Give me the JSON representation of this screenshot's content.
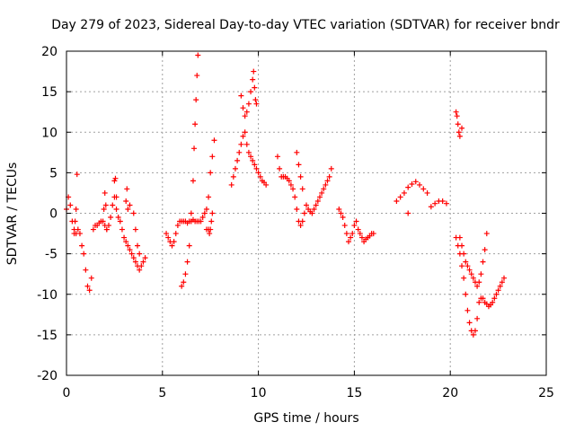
{
  "colors": {
    "series": "#ff0000",
    "grid": "#a0a0a0",
    "axis": "#000000"
  },
  "chart_data": {
    "type": "scatter",
    "title": "Day 279 of 2023, Sidereal Day-to-day VTEC variation (SDTVAR) for receiver bndr",
    "xlabel": "GPS time / hours",
    "ylabel": "SDTVAR / TECUs",
    "xlim": [
      0,
      25
    ],
    "ylim": [
      -20,
      20
    ],
    "grid": true,
    "marker": "+",
    "xticks": [
      0,
      5,
      10,
      15,
      20,
      25
    ],
    "yticks": [
      -20,
      -15,
      -10,
      -5,
      0,
      5,
      10,
      15,
      20
    ],
    "series": [
      {
        "name": "SDTVAR",
        "x": [
          0.0,
          0.1,
          0.2,
          0.3,
          0.4,
          0.5,
          0.6,
          0.7,
          0.8,
          0.9,
          1.0,
          1.1,
          1.2,
          1.3,
          1.4,
          1.5,
          1.6,
          1.7,
          1.8,
          1.9,
          2.0,
          2.1,
          2.2,
          2.3,
          2.4,
          2.5,
          2.6,
          2.7,
          2.8,
          2.9,
          3.0,
          3.1,
          3.2,
          3.3,
          3.4,
          3.5,
          3.6,
          3.7,
          3.8,
          3.9,
          4.0,
          4.1,
          0.4,
          0.45,
          0.5,
          0.55,
          1.95,
          2.0,
          2.05,
          2.1,
          2.5,
          2.55,
          2.6,
          3.1,
          3.15,
          3.2,
          3.3,
          3.5,
          3.6,
          3.7,
          3.8,
          5.2,
          5.3,
          5.4,
          5.5,
          5.6,
          5.7,
          5.8,
          5.9,
          6.0,
          6.1,
          6.2,
          6.3,
          6.4,
          6.5,
          6.6,
          6.7,
          6.8,
          6.9,
          7.0,
          7.1,
          7.2,
          7.3,
          7.4,
          7.5,
          7.6,
          7.7,
          6.0,
          6.1,
          6.2,
          6.3,
          6.4,
          6.5,
          6.6,
          6.65,
          6.7,
          6.75,
          6.8,
          6.85,
          7.3,
          7.4,
          7.45,
          7.5,
          7.55,
          7.6,
          8.6,
          8.7,
          8.8,
          8.9,
          9.0,
          9.1,
          9.2,
          9.3,
          9.4,
          9.5,
          9.6,
          9.7,
          9.8,
          9.9,
          10.0,
          10.1,
          10.2,
          10.3,
          10.4,
          9.1,
          9.2,
          9.3,
          9.4,
          9.5,
          9.6,
          9.7,
          9.75,
          9.8,
          9.85,
          9.9,
          11.0,
          11.1,
          11.2,
          11.3,
          11.4,
          11.5,
          11.6,
          11.7,
          11.8,
          11.9,
          12.0,
          12.1,
          12.2,
          12.3,
          12.4,
          12.5,
          12.6,
          12.7,
          12.8,
          12.9,
          13.0,
          13.1,
          13.2,
          13.3,
          13.4,
          13.5,
          13.6,
          13.7,
          13.8,
          12.0,
          12.1,
          12.2,
          12.3,
          14.2,
          14.3,
          14.4,
          14.5,
          14.6,
          14.7,
          14.8,
          14.9,
          15.0,
          15.1,
          15.2,
          15.3,
          15.4,
          15.5,
          15.6,
          15.7,
          15.8,
          15.9,
          16.0,
          17.2,
          17.4,
          17.6,
          17.8,
          18.0,
          18.2,
          18.4,
          18.6,
          18.8,
          19.0,
          19.2,
          19.4,
          19.6,
          19.8,
          17.8,
          20.3,
          20.35,
          20.4,
          20.45,
          20.5,
          20.6,
          20.3,
          20.4,
          20.5,
          20.6,
          20.7,
          20.8,
          20.9,
          21.0,
          21.1,
          21.2,
          21.3,
          21.4,
          21.5,
          21.6,
          21.7,
          21.8,
          21.9,
          22.0,
          22.1,
          22.2,
          22.3,
          22.4,
          22.5,
          22.6,
          22.7,
          22.8,
          20.5,
          20.6,
          20.7,
          20.8,
          20.9,
          21.0,
          21.1,
          21.2,
          21.3,
          21.4,
          21.5,
          21.6,
          21.7,
          21.8,
          21.9
        ],
        "y": [
          0.5,
          2.0,
          1.0,
          -1.0,
          -2.0,
          -2.5,
          -2.0,
          -2.5,
          -4.0,
          -5.0,
          -7.0,
          -9.0,
          -9.5,
          -8.0,
          -2.0,
          -1.5,
          -1.5,
          -1.2,
          -1.0,
          -1.0,
          -1.5,
          -2.0,
          -1.5,
          -0.5,
          1.0,
          2.0,
          0.5,
          -0.5,
          -1.0,
          -2.0,
          -3.0,
          -3.5,
          -4.0,
          -4.5,
          -5.0,
          -5.5,
          -6.0,
          -6.5,
          -7.0,
          -6.5,
          -6.0,
          -5.5,
          -2.5,
          -1.0,
          0.5,
          4.8,
          0.5,
          2.5,
          1.0,
          -2.0,
          4.0,
          4.3,
          2.0,
          1.5,
          3.0,
          0.5,
          1.0,
          0.0,
          -2.0,
          -4.0,
          -5.0,
          -2.5,
          -3.0,
          -3.5,
          -4.0,
          -3.5,
          -2.5,
          -1.5,
          -1.0,
          -1.0,
          -1.0,
          -1.0,
          -1.2,
          -1.0,
          -1.0,
          -0.8,
          -1.0,
          -1.0,
          -1.0,
          -1.0,
          -0.5,
          0.0,
          0.5,
          2.0,
          5.0,
          7.0,
          9.0,
          -9.0,
          -8.5,
          -7.5,
          -6.0,
          -4.0,
          0.0,
          4.0,
          8.0,
          11.0,
          14.0,
          17.0,
          19.5,
          -2.0,
          -2.0,
          -2.5,
          -2.0,
          -1.0,
          0.0,
          3.5,
          4.5,
          5.5,
          6.5,
          7.5,
          8.5,
          9.5,
          10.0,
          8.5,
          7.5,
          7.0,
          6.5,
          6.0,
          5.5,
          5.0,
          4.5,
          4.0,
          3.8,
          3.5,
          14.5,
          13.0,
          12.0,
          12.5,
          13.5,
          15.0,
          16.5,
          17.5,
          15.5,
          14.0,
          13.5,
          7.0,
          5.5,
          4.5,
          4.5,
          4.5,
          4.3,
          4.0,
          3.5,
          3.0,
          2.0,
          0.5,
          -1.0,
          -1.5,
          -1.0,
          0.0,
          1.0,
          0.5,
          0.2,
          0.0,
          0.5,
          1.0,
          1.5,
          2.0,
          2.5,
          3.0,
          3.5,
          4.0,
          4.5,
          5.5,
          7.5,
          6.0,
          4.5,
          3.0,
          0.5,
          0.0,
          -0.5,
          -1.5,
          -2.5,
          -3.5,
          -3.0,
          -2.5,
          -1.5,
          -1.0,
          -2.0,
          -2.5,
          -3.0,
          -3.5,
          -3.2,
          -3.0,
          -2.8,
          -2.5,
          -2.5,
          1.5,
          2.0,
          2.5,
          3.2,
          3.6,
          3.9,
          3.5,
          3.0,
          2.5,
          0.8,
          1.2,
          1.5,
          1.5,
          1.2,
          0.0,
          12.5,
          12.0,
          11.0,
          10.0,
          9.5,
          10.5,
          -3.0,
          -4.0,
          -5.0,
          -6.5,
          -8.0,
          -10.0,
          -12.0,
          -13.5,
          -14.5,
          -15.0,
          -14.5,
          -13.0,
          -11.0,
          -10.5,
          -10.5,
          -11.0,
          -11.2,
          -11.5,
          -11.3,
          -11.0,
          -10.5,
          -10.0,
          -9.5,
          -9.0,
          -8.5,
          -8.0,
          -3.0,
          -4.0,
          -5.0,
          -6.0,
          -6.5,
          -7.0,
          -7.5,
          -8.0,
          -8.5,
          -9.0,
          -8.5,
          -7.5,
          -6.0,
          -4.5,
          -2.5
        ]
      }
    ]
  }
}
